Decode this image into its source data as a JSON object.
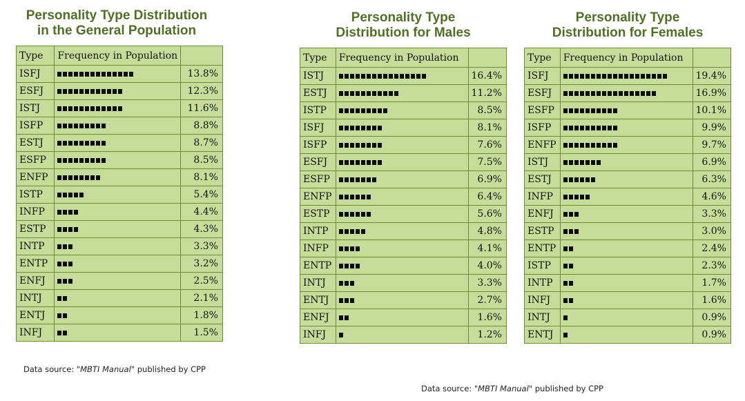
{
  "chart_data": [
    {
      "type": "table",
      "title": "Personality Type Distribution\nin the General Population",
      "columns": [
        "Type",
        "Frequency in Population",
        ""
      ],
      "rows": [
        {
          "type": "ISFJ",
          "pct": "13.8%",
          "value": 13.8,
          "squares": 14
        },
        {
          "type": "ESFJ",
          "pct": "12.3%",
          "value": 12.3,
          "squares": 12
        },
        {
          "type": "ISTJ",
          "pct": "11.6%",
          "value": 11.6,
          "squares": 12
        },
        {
          "type": "ISFP",
          "pct": "8.8%",
          "value": 8.8,
          "squares": 9
        },
        {
          "type": "ESTJ",
          "pct": "8.7%",
          "value": 8.7,
          "squares": 9
        },
        {
          "type": "ESFP",
          "pct": "8.5%",
          "value": 8.5,
          "squares": 9
        },
        {
          "type": "ENFP",
          "pct": "8.1%",
          "value": 8.1,
          "squares": 8
        },
        {
          "type": "ISTP",
          "pct": "5.4%",
          "value": 5.4,
          "squares": 5
        },
        {
          "type": "INFP",
          "pct": "4.4%",
          "value": 4.4,
          "squares": 4
        },
        {
          "type": "ESTP",
          "pct": "4.3%",
          "value": 4.3,
          "squares": 4
        },
        {
          "type": "INTP",
          "pct": "3.3%",
          "value": 3.3,
          "squares": 3
        },
        {
          "type": "ENTP",
          "pct": "3.2%",
          "value": 3.2,
          "squares": 3
        },
        {
          "type": "ENFJ",
          "pct": "2.5%",
          "value": 2.5,
          "squares": 3
        },
        {
          "type": "INTJ",
          "pct": "2.1%",
          "value": 2.1,
          "squares": 2
        },
        {
          "type": "ENTJ",
          "pct": "1.8%",
          "value": 1.8,
          "squares": 2
        },
        {
          "type": "INFJ",
          "pct": "1.5%",
          "value": 1.5,
          "squares": 2
        }
      ]
    },
    {
      "type": "table",
      "title": "Personality Type\nDistribution for Males",
      "columns": [
        "Type",
        "Frequency in Population",
        ""
      ],
      "rows": [
        {
          "type": "ISTJ",
          "pct": "16.4%",
          "value": 16.4,
          "squares": 16
        },
        {
          "type": "ESTJ",
          "pct": "11.2%",
          "value": 11.2,
          "squares": 11
        },
        {
          "type": "ISTP",
          "pct": "8.5%",
          "value": 8.5,
          "squares": 9
        },
        {
          "type": "ISFJ",
          "pct": "8.1%",
          "value": 8.1,
          "squares": 8
        },
        {
          "type": "ISFP",
          "pct": "7.6%",
          "value": 7.6,
          "squares": 8
        },
        {
          "type": "ESFJ",
          "pct": "7.5%",
          "value": 7.5,
          "squares": 8
        },
        {
          "type": "ESFP",
          "pct": "6.9%",
          "value": 6.9,
          "squares": 7
        },
        {
          "type": "ENFP",
          "pct": "6.4%",
          "value": 6.4,
          "squares": 6
        },
        {
          "type": "ESTP",
          "pct": "5.6%",
          "value": 5.6,
          "squares": 6
        },
        {
          "type": "INTP",
          "pct": "4.8%",
          "value": 4.8,
          "squares": 5
        },
        {
          "type": "INFP",
          "pct": "4.1%",
          "value": 4.1,
          "squares": 4
        },
        {
          "type": "ENTP",
          "pct": "4.0%",
          "value": 4.0,
          "squares": 4
        },
        {
          "type": "INTJ",
          "pct": "3.3%",
          "value": 3.3,
          "squares": 3
        },
        {
          "type": "ENTJ",
          "pct": "2.7%",
          "value": 2.7,
          "squares": 3
        },
        {
          "type": "ENFJ",
          "pct": "1.6%",
          "value": 1.6,
          "squares": 2
        },
        {
          "type": "INFJ",
          "pct": "1.2%",
          "value": 1.2,
          "squares": 1
        }
      ]
    },
    {
      "type": "table",
      "title": "Personality Type\nDistribution for Females",
      "columns": [
        "Type",
        "Frequency in Population",
        ""
      ],
      "rows": [
        {
          "type": "ISFJ",
          "pct": "19.4%",
          "value": 19.4,
          "squares": 19
        },
        {
          "type": "ESFJ",
          "pct": "16.9%",
          "value": 16.9,
          "squares": 17
        },
        {
          "type": "ESFP",
          "pct": "10.1%",
          "value": 10.1,
          "squares": 10
        },
        {
          "type": "ISFP",
          "pct": "9.9%",
          "value": 9.9,
          "squares": 10
        },
        {
          "type": "ENFP",
          "pct": "9.7%",
          "value": 9.7,
          "squares": 10
        },
        {
          "type": "ISTJ",
          "pct": "6.9%",
          "value": 6.9,
          "squares": 7
        },
        {
          "type": "ESTJ",
          "pct": "6.3%",
          "value": 6.3,
          "squares": 6
        },
        {
          "type": "INFP",
          "pct": "4.6%",
          "value": 4.6,
          "squares": 5
        },
        {
          "type": "ENFJ",
          "pct": "3.3%",
          "value": 3.3,
          "squares": 3
        },
        {
          "type": "ESTP",
          "pct": "3.0%",
          "value": 3.0,
          "squares": 3
        },
        {
          "type": "ENTP",
          "pct": "2.4%",
          "value": 2.4,
          "squares": 2
        },
        {
          "type": "ISTP",
          "pct": "2.3%",
          "value": 2.3,
          "squares": 2
        },
        {
          "type": "INTP",
          "pct": "1.7%",
          "value": 1.7,
          "squares": 2
        },
        {
          "type": "INFJ",
          "pct": "1.6%",
          "value": 1.6,
          "squares": 2
        },
        {
          "type": "INTJ",
          "pct": "0.9%",
          "value": 0.9,
          "squares": 1
        },
        {
          "type": "ENTJ",
          "pct": "0.9%",
          "value": 0.9,
          "squares": 1
        }
      ]
    }
  ],
  "source": {
    "prefix": "Data source: \"",
    "book": "MBTI Manual",
    "suffix": "\" published by CPP"
  },
  "colors": {
    "title": "#4f6f25",
    "cell_bg": "#c6dd9a",
    "border": "#6d8b3c",
    "bar": "#0a0a0a"
  }
}
